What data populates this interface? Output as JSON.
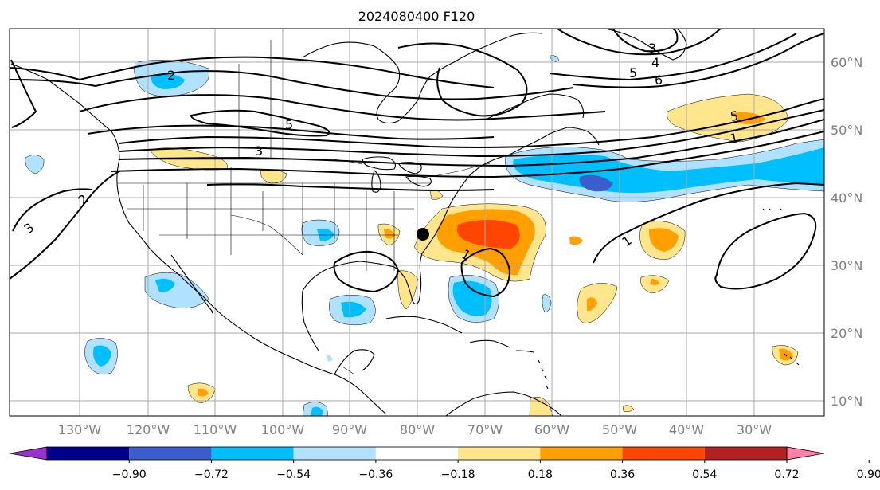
{
  "title": "2024080400 F120",
  "lon_labels": [
    "130°W",
    "120°W",
    "110°W",
    "100°W",
    "90°W",
    "80°W",
    "70°W",
    "60°W",
    "50°W",
    "40°W",
    "30°W"
  ],
  "lat_labels": [
    "60°N",
    "50°N",
    "40°N",
    "30°N",
    "20°N",
    "10°N"
  ],
  "colorbar": {
    "ticks": [
      "−0.90",
      "−0.72",
      "−0.54",
      "−0.36",
      "−0.18",
      "0.18",
      "0.36",
      "0.54",
      "0.72",
      "0.90"
    ],
    "colors": [
      "#9932cc",
      "#00008b",
      "#3a5fcd",
      "#00bfff",
      "#b0e2ff",
      "#ffffff",
      "#ffe68c",
      "#ffa000",
      "#ff4500",
      "#b22222",
      "#ff82ab"
    ],
    "extend": "both"
  },
  "contour_labels": [
    "2",
    "5",
    "3",
    "2",
    "3",
    "5",
    "6",
    "3",
    "4",
    "5",
    "1",
    "1",
    "1"
  ],
  "storm_marker": "tropical-storm-center"
}
